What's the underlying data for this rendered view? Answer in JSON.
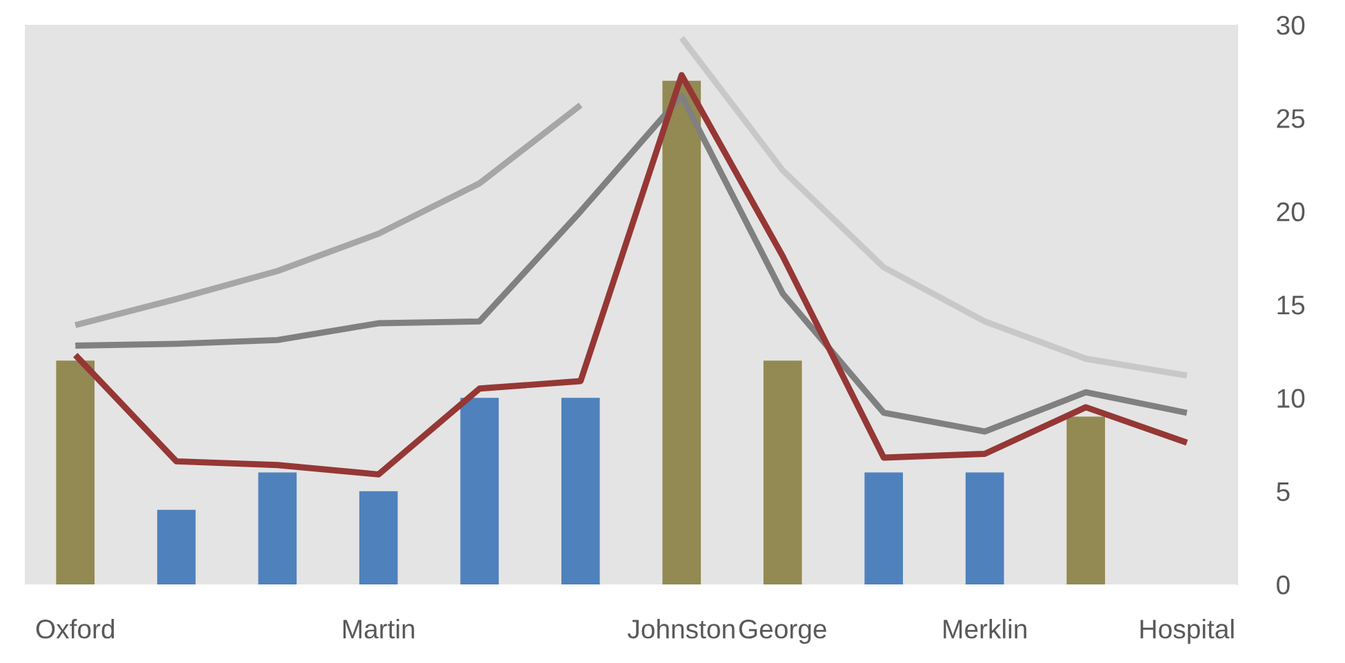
{
  "chart_data": {
    "type": "bar",
    "categories": [
      "Oxford",
      null,
      null,
      "Martin",
      null,
      null,
      "Johnston",
      "George",
      null,
      "Merklin",
      null,
      "Hospital"
    ],
    "ylim": [
      0,
      30
    ],
    "yticks": [
      0,
      5,
      10,
      15,
      20,
      25,
      30
    ],
    "grid": false,
    "legend": false,
    "series": [
      {
        "values": [
          12,
          4,
          6,
          5,
          10,
          10,
          27,
          12,
          6,
          6,
          9,
          null
        ],
        "colors": [
          "#938953",
          "#4f81bd",
          "#4f81bd",
          "#4f81bd",
          "#4f81bd",
          "#4f81bd",
          "#938953",
          "#938953",
          "#4f81bd",
          "#4f81bd",
          "#938953",
          "#4f81bd"
        ]
      },
      {
        "type": "line",
        "color": "#a6a6a6",
        "values": [
          13.9,
          15.3,
          16.8,
          18.8,
          21.5,
          25.7,
          null,
          null,
          null,
          null,
          null,
          null
        ]
      },
      {
        "type": "line",
        "color": "#c8c8c8",
        "values": [
          null,
          null,
          null,
          null,
          null,
          null,
          29.3,
          22.2,
          17.0,
          14.1,
          12.1,
          11.2
        ]
      },
      {
        "type": "line",
        "color": "#808080",
        "values": [
          12.8,
          12.9,
          13.1,
          14.0,
          14.1,
          20.0,
          26.2,
          15.6,
          9.2,
          8.2,
          10.3,
          9.2
        ]
      },
      {
        "type": "line",
        "color": "#953735",
        "values": [
          12.3,
          6.6,
          6.4,
          5.9,
          10.5,
          10.9,
          27.3,
          17.6,
          6.8,
          7.0,
          9.5,
          7.6
        ]
      }
    ]
  }
}
